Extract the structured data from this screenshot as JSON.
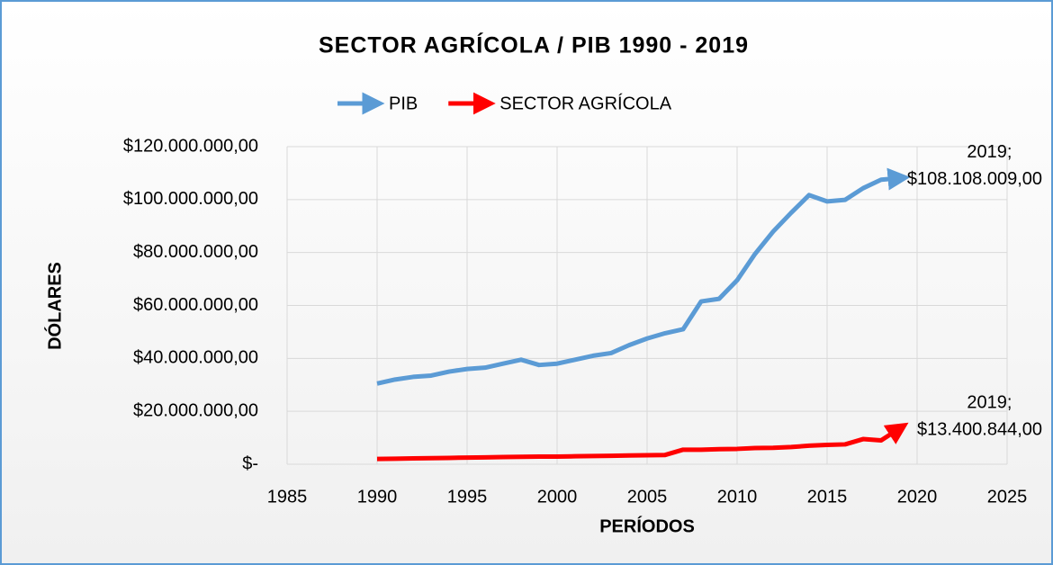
{
  "chart_data": {
    "type": "line",
    "title": "SECTOR AGRÍCOLA / PIB 1990 - 2019",
    "x_label": "PERÍODOS",
    "y_label": "DÓLARES",
    "x": [
      1990,
      1991,
      1992,
      1993,
      1994,
      1995,
      1996,
      1997,
      1998,
      1999,
      2000,
      2001,
      2002,
      2003,
      2004,
      2005,
      2006,
      2007,
      2008,
      2009,
      2010,
      2011,
      2012,
      2013,
      2014,
      2015,
      2016,
      2017,
      2018,
      2019
    ],
    "series": [
      {
        "name": "PIB",
        "color": "#5b9bd5",
        "values": [
          30500000,
          32000000,
          33000000,
          33500000,
          35000000,
          36000000,
          36500000,
          38000000,
          39500000,
          37500000,
          38000000,
          39500000,
          41000000,
          42000000,
          45000000,
          47500000,
          49500000,
          51000000,
          61500000,
          62500000,
          69500000,
          79500000,
          87900000,
          95000000,
          101700000,
          99300000,
          99900000,
          104300000,
          107500000,
          108108009
        ],
        "value_labels": [
          null,
          null,
          null,
          null,
          null,
          null,
          null,
          null,
          null,
          null,
          null,
          null,
          null,
          null,
          null,
          null,
          null,
          null,
          null,
          null,
          null,
          null,
          null,
          null,
          null,
          null,
          null,
          null,
          null,
          "2019; $108.108.009,00"
        ]
      },
      {
        "name": "SECTOR AGRÍCOLA",
        "color": "#ff0000",
        "values": [
          2000000,
          2100000,
          2200000,
          2300000,
          2400000,
          2500000,
          2600000,
          2700000,
          2800000,
          2900000,
          2900000,
          3000000,
          3100000,
          3200000,
          3300000,
          3400000,
          3500000,
          5500000,
          5500000,
          5700000,
          5800000,
          6100000,
          6200000,
          6500000,
          7000000,
          7300000,
          7500000,
          9500000,
          9000000,
          13400844
        ],
        "value_labels": [
          null,
          null,
          null,
          null,
          null,
          null,
          null,
          null,
          null,
          null,
          null,
          null,
          null,
          null,
          null,
          null,
          null,
          null,
          null,
          null,
          null,
          null,
          null,
          null,
          null,
          null,
          null,
          null,
          null,
          "2019; $13.400.844,00"
        ]
      }
    ],
    "xlim": [
      1985,
      2025
    ],
    "xticks": [
      1985,
      1990,
      1995,
      2000,
      2005,
      2010,
      2015,
      2020,
      2025
    ],
    "ylim": [
      0,
      120000000
    ],
    "yticks": [
      {
        "value": 0,
        "label": "$-"
      },
      {
        "value": 20000000,
        "label": "$20.000.000,00"
      },
      {
        "value": 40000000,
        "label": "$40.000.000,00"
      },
      {
        "value": 60000000,
        "label": "$60.000.000,00"
      },
      {
        "value": 80000000,
        "label": "$80.000.000,00"
      },
      {
        "value": 100000000,
        "label": "$100.000.000,00"
      },
      {
        "value": 120000000,
        "label": "$120.000.000,00"
      }
    ],
    "grid": true,
    "legend": "top"
  }
}
